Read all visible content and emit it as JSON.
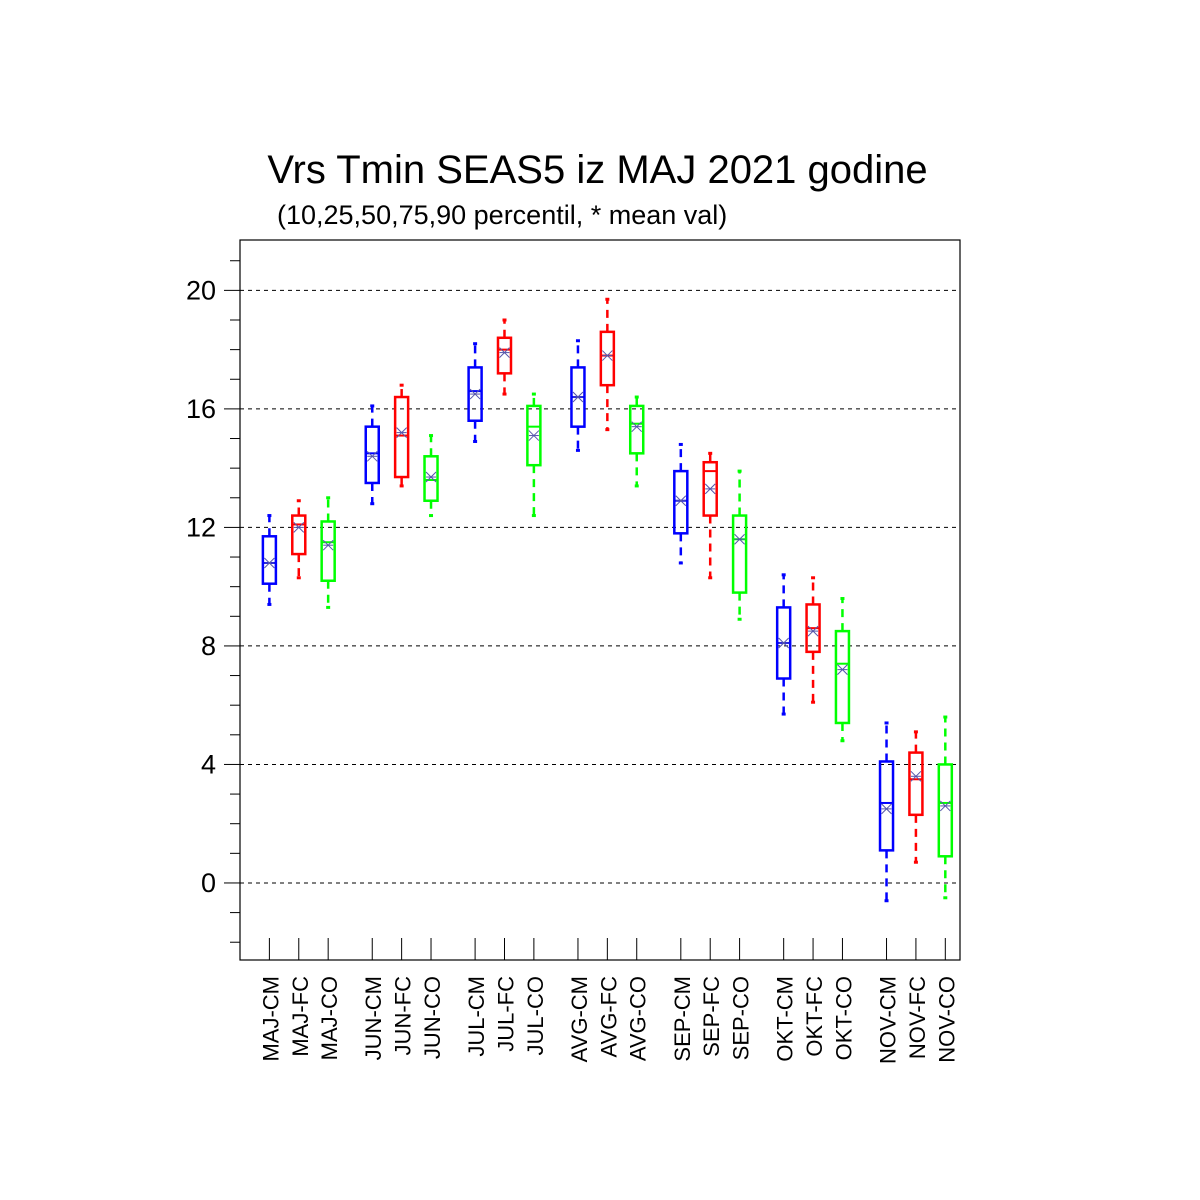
{
  "chart_data": {
    "type": "boxplot",
    "title": "Vrs Tmin SEAS5 iz MAJ 2021 godine",
    "subtitle": "(10,25,50,75,90 percentil, * mean val)",
    "xlabel": "",
    "ylabel": "",
    "ylim": [
      -2.6,
      21.7
    ],
    "yticks": [
      0,
      4,
      8,
      12,
      16,
      20
    ],
    "grid": "horizontal dashed at major ticks",
    "colors": {
      "CM": "#0000ff",
      "FC": "#ff0000",
      "CO": "#00ff00",
      "mean_marker": "#5555aa"
    },
    "categories": [
      "MAJ-CM",
      "MAJ-FC",
      "MAJ-CO",
      "JUN-CM",
      "JUN-FC",
      "JUN-CO",
      "JUL-CM",
      "JUL-FC",
      "JUL-CO",
      "AVG-CM",
      "AVG-FC",
      "AVG-CO",
      "SEP-CM",
      "SEP-FC",
      "SEP-CO",
      "OKT-CM",
      "OKT-FC",
      "OKT-CO",
      "NOV-CM",
      "NOV-FC",
      "NOV-CO"
    ],
    "boxes": [
      {
        "p10": 9.4,
        "p25": 10.1,
        "p50": 10.8,
        "p75": 11.7,
        "p90": 12.4,
        "mean": 10.8
      },
      {
        "p10": 10.3,
        "p25": 11.1,
        "p50": 12.1,
        "p75": 12.4,
        "p90": 12.9,
        "mean": 12.0
      },
      {
        "p10": 9.3,
        "p25": 10.2,
        "p50": 11.5,
        "p75": 12.2,
        "p90": 13.0,
        "mean": 11.4
      },
      {
        "p10": 12.8,
        "p25": 13.5,
        "p50": 14.5,
        "p75": 15.4,
        "p90": 16.1,
        "mean": 14.4
      },
      {
        "p10": 13.4,
        "p25": 13.7,
        "p50": 15.1,
        "p75": 16.4,
        "p90": 16.8,
        "mean": 15.2
      },
      {
        "p10": 12.4,
        "p25": 12.9,
        "p50": 13.6,
        "p75": 14.4,
        "p90": 15.1,
        "mean": 13.7
      },
      {
        "p10": 14.9,
        "p25": 15.6,
        "p50": 16.6,
        "p75": 17.4,
        "p90": 18.2,
        "mean": 16.5
      },
      {
        "p10": 16.5,
        "p25": 17.2,
        "p50": 18.0,
        "p75": 18.4,
        "p90": 19.0,
        "mean": 17.9
      },
      {
        "p10": 12.4,
        "p25": 14.1,
        "p50": 15.4,
        "p75": 16.1,
        "p90": 16.5,
        "mean": 15.1
      },
      {
        "p10": 14.6,
        "p25": 15.4,
        "p50": 16.4,
        "p75": 17.4,
        "p90": 18.3,
        "mean": 16.4
      },
      {
        "p10": 15.3,
        "p25": 16.8,
        "p50": 17.8,
        "p75": 18.6,
        "p90": 19.7,
        "mean": 17.8
      },
      {
        "p10": 13.4,
        "p25": 14.5,
        "p50": 15.5,
        "p75": 16.1,
        "p90": 16.4,
        "mean": 15.4
      },
      {
        "p10": 10.8,
        "p25": 11.8,
        "p50": 12.9,
        "p75": 13.9,
        "p90": 14.8,
        "mean": 12.9
      },
      {
        "p10": 10.3,
        "p25": 12.4,
        "p50": 13.9,
        "p75": 14.2,
        "p90": 14.5,
        "mean": 13.3
      },
      {
        "p10": 8.9,
        "p25": 9.8,
        "p50": 11.6,
        "p75": 12.4,
        "p90": 13.9,
        "mean": 11.6
      },
      {
        "p10": 5.7,
        "p25": 6.9,
        "p50": 8.1,
        "p75": 9.3,
        "p90": 10.4,
        "mean": 8.1
      },
      {
        "p10": 6.1,
        "p25": 7.8,
        "p50": 8.6,
        "p75": 9.4,
        "p90": 10.3,
        "mean": 8.5
      },
      {
        "p10": 4.8,
        "p25": 5.4,
        "p50": 7.4,
        "p75": 8.5,
        "p90": 9.6,
        "mean": 7.2
      },
      {
        "p10": -0.6,
        "p25": 1.1,
        "p50": 2.7,
        "p75": 4.1,
        "p90": 5.4,
        "mean": 2.5
      },
      {
        "p10": 0.7,
        "p25": 2.3,
        "p50": 3.5,
        "p75": 4.4,
        "p90": 5.1,
        "mean": 3.6
      },
      {
        "p10": -0.5,
        "p25": 0.9,
        "p50": 2.7,
        "p75": 4.0,
        "p90": 5.6,
        "mean": 2.6
      }
    ]
  }
}
